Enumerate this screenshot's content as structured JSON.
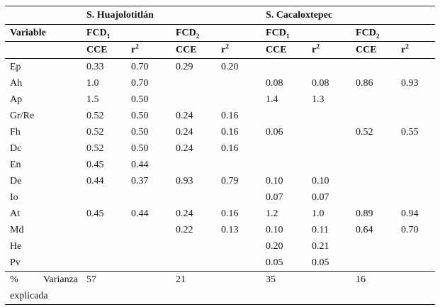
{
  "table": {
    "groups": [
      "S. Huajolotitlán",
      "S. Cacaloxtepec"
    ],
    "variable_header": "Variable",
    "fcd_base": "FCD",
    "fcd_subs": [
      "1",
      "2"
    ],
    "metrics": {
      "cce": "CCE",
      "r_base": "r",
      "r_sup": "2"
    },
    "rows": [
      {
        "variable": "Ep",
        "values": [
          "0.33",
          "0.70",
          "0.29",
          "0.20",
          "",
          "",
          "",
          ""
        ]
      },
      {
        "variable": "Ah",
        "values": [
          "1.0",
          "0.70",
          "",
          "",
          "0.08",
          "0.08",
          "0.86",
          "0.93"
        ]
      },
      {
        "variable": "Ap",
        "values": [
          "1.5",
          "0.50",
          "",
          "",
          "1.4",
          "1.3",
          "",
          ""
        ]
      },
      {
        "variable": "Gr/Re",
        "values": [
          "0.52",
          "0.50",
          "0.24",
          "0.16",
          "",
          "",
          "",
          ""
        ]
      },
      {
        "variable": "Fh",
        "values": [
          "0.52",
          "0.50",
          "0.24",
          "0.16",
          "0.06",
          "",
          "0.52",
          "0.55"
        ]
      },
      {
        "variable": "Dc",
        "values": [
          "0.52",
          "0.50",
          "0.24",
          "0.16",
          "",
          "",
          "",
          ""
        ]
      },
      {
        "variable": "En",
        "values": [
          "0.45",
          "0.44",
          "",
          "",
          "",
          "",
          "",
          ""
        ]
      },
      {
        "variable": "De",
        "values": [
          "0.44",
          "0.37",
          "0.93",
          "0.79",
          "0.10",
          "0.10",
          "",
          ""
        ]
      },
      {
        "variable": "Io",
        "values": [
          "",
          "",
          "",
          "",
          "0.07",
          "0.07",
          "",
          ""
        ]
      },
      {
        "variable": "At",
        "values": [
          "0.45",
          "0.44",
          "0.24",
          "0.16",
          "1.2",
          "1.0",
          "0.89",
          "0.94"
        ]
      },
      {
        "variable": "Md",
        "values": [
          "",
          "",
          "0.22",
          "0.13",
          "0.10",
          "0.11",
          "0.64",
          "0.70"
        ]
      },
      {
        "variable": "He",
        "values": [
          "",
          "",
          "",
          "",
          "0.20",
          "0.21",
          "",
          ""
        ]
      },
      {
        "variable": "Pv",
        "values": [
          "",
          "",
          "",
          "",
          "0.05",
          "0.05",
          "",
          ""
        ]
      }
    ],
    "footer": {
      "label_word1": "%",
      "label_word2": "Varianza",
      "label_line2": "explicada",
      "values": [
        "57",
        "",
        "21",
        "",
        "35",
        "",
        "16",
        ""
      ]
    }
  }
}
